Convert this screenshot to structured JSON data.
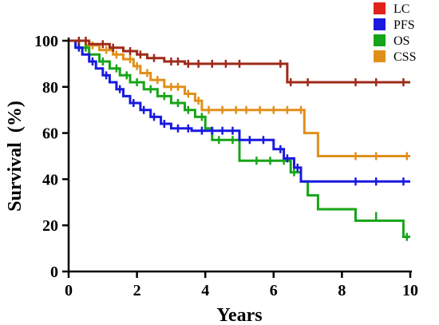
{
  "chart_data": {
    "type": "line",
    "title": "",
    "xlabel": "Years",
    "ylabel": "Survival  (%)",
    "xlim": [
      0,
      10
    ],
    "ylim": [
      0,
      100
    ],
    "x_ticks": [
      0,
      2,
      4,
      6,
      8,
      10
    ],
    "y_ticks": [
      0,
      20,
      40,
      60,
      80,
      100
    ],
    "grid": false,
    "legend_position": "top-right",
    "series": [
      {
        "name": "LC",
        "color": "#9e2a1a",
        "legend_color": "#e0221b",
        "points": [
          [
            0,
            100
          ],
          [
            0.6,
            100
          ],
          [
            0.6,
            98.5
          ],
          [
            1.2,
            98.5
          ],
          [
            1.2,
            97
          ],
          [
            1.6,
            97
          ],
          [
            1.6,
            95.5
          ],
          [
            2,
            95.5
          ],
          [
            2,
            94
          ],
          [
            2.3,
            94
          ],
          [
            2.3,
            92.5
          ],
          [
            2.8,
            92.5
          ],
          [
            2.8,
            91
          ],
          [
            3.4,
            91
          ],
          [
            3.4,
            90
          ],
          [
            6.4,
            90
          ],
          [
            6.4,
            82
          ],
          [
            10,
            82
          ]
        ],
        "censored": [
          [
            0.3,
            100
          ],
          [
            0.5,
            100
          ],
          [
            1.0,
            98.5
          ],
          [
            1.3,
            97
          ],
          [
            1.8,
            95.5
          ],
          [
            2.1,
            94
          ],
          [
            2.5,
            92.5
          ],
          [
            3.0,
            91
          ],
          [
            3.2,
            91
          ],
          [
            3.5,
            90
          ],
          [
            3.8,
            90
          ],
          [
            4.2,
            90
          ],
          [
            4.6,
            90
          ],
          [
            5.0,
            90
          ],
          [
            6.2,
            90
          ],
          [
            6.5,
            82
          ],
          [
            7.0,
            82
          ],
          [
            8.4,
            82
          ],
          [
            9.0,
            82
          ],
          [
            9.8,
            82
          ]
        ]
      },
      {
        "name": "PFS",
        "color": "#1919e0",
        "legend_color": "#1919e0",
        "points": [
          [
            0,
            100
          ],
          [
            0.2,
            100
          ],
          [
            0.2,
            97
          ],
          [
            0.4,
            97
          ],
          [
            0.4,
            94
          ],
          [
            0.6,
            94
          ],
          [
            0.6,
            91
          ],
          [
            0.8,
            91
          ],
          [
            0.8,
            88
          ],
          [
            1.0,
            88
          ],
          [
            1.0,
            85
          ],
          [
            1.2,
            85
          ],
          [
            1.2,
            82
          ],
          [
            1.4,
            82
          ],
          [
            1.4,
            79
          ],
          [
            1.6,
            79
          ],
          [
            1.6,
            76
          ],
          [
            1.8,
            76
          ],
          [
            1.8,
            73
          ],
          [
            2.1,
            73
          ],
          [
            2.1,
            70
          ],
          [
            2.4,
            70
          ],
          [
            2.4,
            67
          ],
          [
            2.7,
            67
          ],
          [
            2.7,
            64
          ],
          [
            3.0,
            64
          ],
          [
            3.0,
            62
          ],
          [
            3.6,
            62
          ],
          [
            3.6,
            61
          ],
          [
            5.0,
            61
          ],
          [
            5.0,
            57
          ],
          [
            6.0,
            57
          ],
          [
            6.0,
            53
          ],
          [
            6.3,
            53
          ],
          [
            6.3,
            49
          ],
          [
            6.6,
            49
          ],
          [
            6.6,
            45
          ],
          [
            6.8,
            45
          ],
          [
            6.8,
            39
          ],
          [
            10,
            39
          ]
        ],
        "censored": [
          [
            0.3,
            97
          ],
          [
            0.7,
            91
          ],
          [
            1.1,
            85
          ],
          [
            1.5,
            79
          ],
          [
            1.9,
            73
          ],
          [
            2.2,
            70
          ],
          [
            2.5,
            67
          ],
          [
            2.8,
            64
          ],
          [
            3.2,
            62
          ],
          [
            3.5,
            62
          ],
          [
            3.9,
            61
          ],
          [
            4.2,
            61
          ],
          [
            4.5,
            61
          ],
          [
            4.8,
            61
          ],
          [
            5.3,
            57
          ],
          [
            5.7,
            57
          ],
          [
            6.2,
            53
          ],
          [
            6.4,
            49
          ],
          [
            6.7,
            45
          ],
          [
            8.4,
            39
          ],
          [
            9.0,
            39
          ],
          [
            9.8,
            39
          ]
        ]
      },
      {
        "name": "OS",
        "color": "#18a418",
        "legend_color": "#18a418",
        "points": [
          [
            0,
            100
          ],
          [
            0.3,
            100
          ],
          [
            0.3,
            97
          ],
          [
            0.6,
            97
          ],
          [
            0.6,
            94
          ],
          [
            0.9,
            94
          ],
          [
            0.9,
            91
          ],
          [
            1.2,
            91
          ],
          [
            1.2,
            88
          ],
          [
            1.5,
            88
          ],
          [
            1.5,
            85
          ],
          [
            1.8,
            85
          ],
          [
            1.8,
            82
          ],
          [
            2.2,
            82
          ],
          [
            2.2,
            79
          ],
          [
            2.6,
            79
          ],
          [
            2.6,
            76
          ],
          [
            3.0,
            76
          ],
          [
            3.0,
            73
          ],
          [
            3.4,
            73
          ],
          [
            3.4,
            70
          ],
          [
            3.7,
            70
          ],
          [
            3.7,
            67
          ],
          [
            4.0,
            67
          ],
          [
            4.0,
            62
          ],
          [
            4.2,
            62
          ],
          [
            4.2,
            57
          ],
          [
            5.0,
            57
          ],
          [
            5.0,
            48
          ],
          [
            6.5,
            48
          ],
          [
            6.5,
            43
          ],
          [
            6.8,
            43
          ],
          [
            6.8,
            39
          ],
          [
            7.0,
            39
          ],
          [
            7.0,
            33
          ],
          [
            7.3,
            33
          ],
          [
            7.3,
            27
          ],
          [
            8.4,
            27
          ],
          [
            8.4,
            22
          ],
          [
            9.8,
            22
          ],
          [
            9.8,
            15
          ],
          [
            10,
            15
          ]
        ],
        "censored": [
          [
            0.5,
            97
          ],
          [
            1.0,
            91
          ],
          [
            1.4,
            88
          ],
          [
            1.7,
            85
          ],
          [
            2.0,
            82
          ],
          [
            2.4,
            79
          ],
          [
            2.8,
            76
          ],
          [
            3.2,
            73
          ],
          [
            3.5,
            70
          ],
          [
            3.9,
            67
          ],
          [
            4.4,
            57
          ],
          [
            4.8,
            57
          ],
          [
            5.5,
            48
          ],
          [
            5.9,
            48
          ],
          [
            6.3,
            48
          ],
          [
            6.6,
            43
          ],
          [
            8.4,
            24
          ],
          [
            9.0,
            24
          ],
          [
            9.9,
            15
          ]
        ]
      },
      {
        "name": "CSS",
        "color": "#e0901a",
        "legend_color": "#e0901a",
        "points": [
          [
            0,
            100
          ],
          [
            0.5,
            100
          ],
          [
            0.5,
            98
          ],
          [
            0.9,
            98
          ],
          [
            0.9,
            96
          ],
          [
            1.3,
            96
          ],
          [
            1.3,
            94
          ],
          [
            1.6,
            94
          ],
          [
            1.6,
            92
          ],
          [
            1.9,
            92
          ],
          [
            1.9,
            89
          ],
          [
            2.1,
            89
          ],
          [
            2.1,
            86
          ],
          [
            2.4,
            86
          ],
          [
            2.4,
            83
          ],
          [
            2.8,
            83
          ],
          [
            2.8,
            80
          ],
          [
            3.4,
            80
          ],
          [
            3.4,
            77
          ],
          [
            3.7,
            77
          ],
          [
            3.7,
            74
          ],
          [
            3.9,
            74
          ],
          [
            3.9,
            70
          ],
          [
            6.9,
            70
          ],
          [
            6.9,
            60
          ],
          [
            7.3,
            60
          ],
          [
            7.3,
            50
          ],
          [
            10,
            50
          ]
        ],
        "censored": [
          [
            0.3,
            100
          ],
          [
            0.7,
            98
          ],
          [
            1.1,
            96
          ],
          [
            1.4,
            94
          ],
          [
            1.8,
            92
          ],
          [
            2.0,
            89
          ],
          [
            2.3,
            86
          ],
          [
            2.6,
            83
          ],
          [
            3.0,
            80
          ],
          [
            3.2,
            80
          ],
          [
            3.5,
            77
          ],
          [
            3.8,
            74
          ],
          [
            4.1,
            70
          ],
          [
            4.5,
            70
          ],
          [
            4.9,
            70
          ],
          [
            5.2,
            70
          ],
          [
            5.6,
            70
          ],
          [
            6.0,
            70
          ],
          [
            6.4,
            70
          ],
          [
            6.8,
            70
          ],
          [
            8.4,
            50
          ],
          [
            9.0,
            50
          ],
          [
            9.9,
            50
          ]
        ]
      }
    ]
  }
}
